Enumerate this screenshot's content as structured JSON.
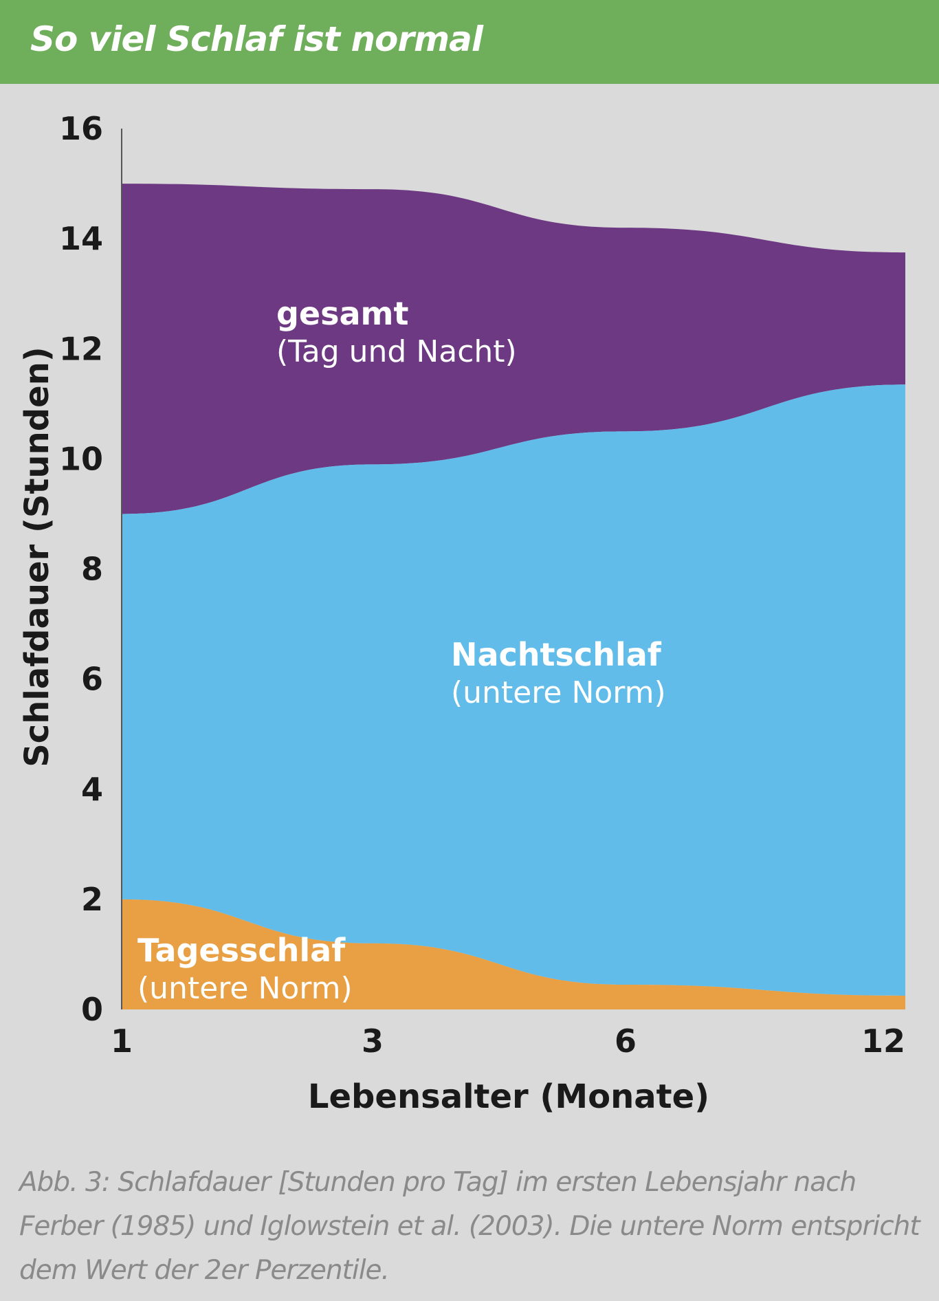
{
  "header": {
    "title": "So viel Schlaf ist normal"
  },
  "caption": "Abb. 3: Schlafdauer [Stunden pro Tag] im ersten Lebensjahr nach Ferber (1985) und Iglowstein et al. (2003). Die untere Norm entspricht dem Wert der 2er Perzentile.",
  "colors": {
    "header": "#6fae5a",
    "background": "#dadada",
    "gesamt": "#6e3983",
    "nachtschlaf": "#62bce9",
    "tagesschlaf": "#e9a044",
    "caption": "#8a8a8a"
  },
  "chart_data": {
    "type": "area",
    "stacked": true,
    "xlabel": "Lebensalter (Monate)",
    "ylabel": "Schlafdauer (Stunden)",
    "x_ticks": [
      "1",
      "3",
      "6",
      "12"
    ],
    "y_ticks": [
      "0",
      "2",
      "4",
      "6",
      "8",
      "10",
      "12",
      "14",
      "16"
    ],
    "ylim": [
      0,
      16
    ],
    "x_scale": "categorical-positions",
    "x": [
      "1",
      "3",
      "6",
      "12"
    ],
    "series": [
      {
        "key": "tagesschlaf",
        "name": "Tagesschlaf",
        "subname": "(untere Norm)",
        "color": "#e9a044",
        "upper": [
          2.0,
          1.2,
          0.45,
          0.25
        ]
      },
      {
        "key": "nachtschlaf",
        "name": "Nachtschlaf",
        "subname": "(untere Norm)",
        "color": "#62bce9",
        "upper": [
          9.0,
          9.9,
          10.5,
          11.35
        ]
      },
      {
        "key": "gesamt",
        "name": "gesamt",
        "subname": "(Tag und Nacht)",
        "color": "#6e3983",
        "upper": [
          15.0,
          14.9,
          14.2,
          13.75
        ]
      }
    ],
    "grid": false,
    "legend": "inline labels"
  }
}
